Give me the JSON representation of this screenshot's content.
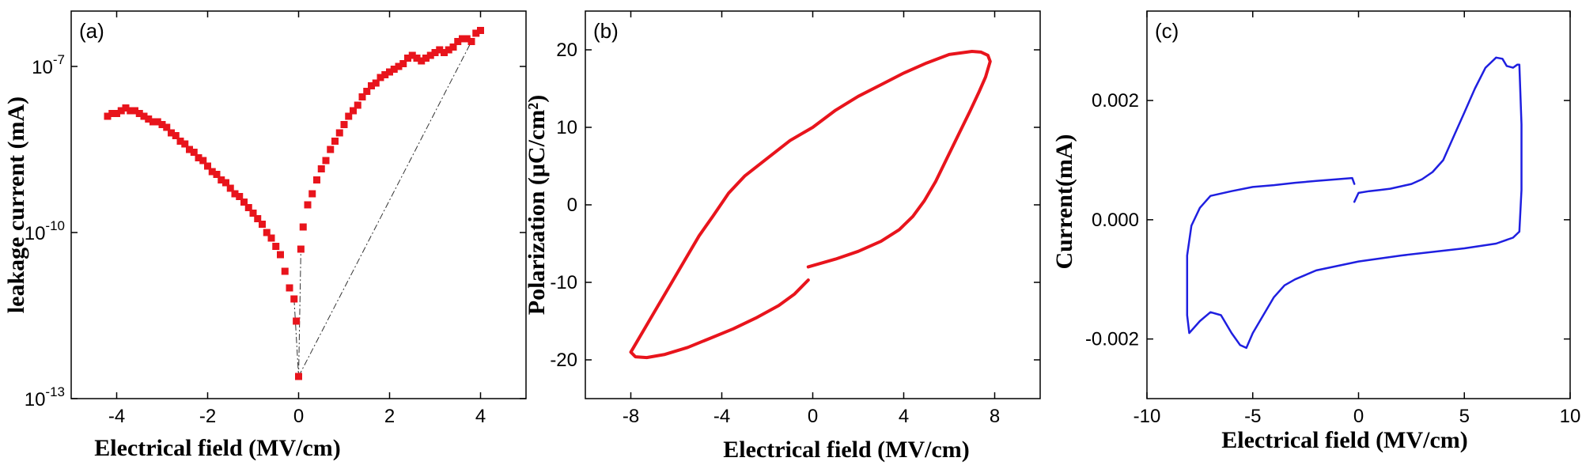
{
  "chart_data": [
    {
      "type": "scatter",
      "panel_label": "(a)",
      "xlabel": "Electrical field (MV/cm)",
      "ylabel": "leakage current (mA)",
      "xlim": [
        -5,
        5
      ],
      "ylim_log10": [
        -13,
        -6
      ],
      "yscale": "log",
      "xticks": [
        -4,
        -2,
        0,
        2,
        4
      ],
      "xtick_labels": [
        "-4",
        "-2",
        "0",
        "2",
        "4"
      ],
      "yticks_log10": [
        -13,
        -10,
        -7
      ],
      "ytick_labels": [
        {
          "base": "10",
          "exp": "-13"
        },
        {
          "base": "10",
          "exp": "-10"
        },
        {
          "base": "10",
          "exp": "-7"
        }
      ],
      "series": [
        {
          "color": "#e8141c",
          "marker": "square",
          "points_log10": [
            [
              -4.2,
              -7.9
            ],
            [
              -4.1,
              -7.85
            ],
            [
              -4.0,
              -7.85
            ],
            [
              -3.9,
              -7.8
            ],
            [
              -3.8,
              -7.75
            ],
            [
              -3.7,
              -7.8
            ],
            [
              -3.6,
              -7.8
            ],
            [
              -3.5,
              -7.85
            ],
            [
              -3.4,
              -7.9
            ],
            [
              -3.3,
              -7.95
            ],
            [
              -3.2,
              -8.0
            ],
            [
              -3.1,
              -8.0
            ],
            [
              -3.0,
              -8.05
            ],
            [
              -2.9,
              -8.1
            ],
            [
              -2.8,
              -8.2
            ],
            [
              -2.7,
              -8.25
            ],
            [
              -2.6,
              -8.35
            ],
            [
              -2.5,
              -8.4
            ],
            [
              -2.4,
              -8.5
            ],
            [
              -2.3,
              -8.55
            ],
            [
              -2.2,
              -8.65
            ],
            [
              -2.1,
              -8.7
            ],
            [
              -2.0,
              -8.8
            ],
            [
              -1.9,
              -8.9
            ],
            [
              -1.8,
              -8.95
            ],
            [
              -1.7,
              -9.05
            ],
            [
              -1.6,
              -9.1
            ],
            [
              -1.5,
              -9.2
            ],
            [
              -1.4,
              -9.3
            ],
            [
              -1.3,
              -9.35
            ],
            [
              -1.2,
              -9.45
            ],
            [
              -1.1,
              -9.55
            ],
            [
              -1.0,
              -9.65
            ],
            [
              -0.9,
              -9.75
            ],
            [
              -0.8,
              -9.85
            ],
            [
              -0.7,
              -10.0
            ],
            [
              -0.6,
              -10.1
            ],
            [
              -0.5,
              -10.25
            ],
            [
              -0.4,
              -10.4
            ],
            [
              -0.3,
              -10.7
            ],
            [
              -0.2,
              -11.0
            ],
            [
              -0.1,
              -11.2
            ],
            [
              -0.05,
              -11.6
            ],
            [
              0.0,
              -12.6
            ],
            [
              0.05,
              -10.3
            ],
            [
              0.1,
              -9.9
            ],
            [
              0.2,
              -9.5
            ],
            [
              0.3,
              -9.3
            ],
            [
              0.4,
              -9.05
            ],
            [
              0.5,
              -8.85
            ],
            [
              0.6,
              -8.7
            ],
            [
              0.7,
              -8.5
            ],
            [
              0.8,
              -8.35
            ],
            [
              0.9,
              -8.2
            ],
            [
              1.0,
              -8.05
            ],
            [
              1.1,
              -7.9
            ],
            [
              1.2,
              -7.8
            ],
            [
              1.3,
              -7.7
            ],
            [
              1.4,
              -7.55
            ],
            [
              1.5,
              -7.45
            ],
            [
              1.6,
              -7.35
            ],
            [
              1.7,
              -7.3
            ],
            [
              1.8,
              -7.2
            ],
            [
              1.9,
              -7.15
            ],
            [
              2.0,
              -7.1
            ],
            [
              2.1,
              -7.05
            ],
            [
              2.2,
              -7.0
            ],
            [
              2.3,
              -6.95
            ],
            [
              2.4,
              -6.85
            ],
            [
              2.5,
              -6.8
            ],
            [
              2.6,
              -6.85
            ],
            [
              2.7,
              -6.9
            ],
            [
              2.8,
              -6.85
            ],
            [
              2.9,
              -6.8
            ],
            [
              3.0,
              -6.75
            ],
            [
              3.1,
              -6.7
            ],
            [
              3.2,
              -6.75
            ],
            [
              3.3,
              -6.7
            ],
            [
              3.4,
              -6.65
            ],
            [
              3.5,
              -6.55
            ],
            [
              3.6,
              -6.5
            ],
            [
              3.7,
              -6.5
            ],
            [
              3.8,
              -6.55
            ],
            [
              3.9,
              -6.4
            ],
            [
              4.0,
              -6.35
            ]
          ]
        }
      ],
      "guide_lines_log10": [
        [
          [
            0.0,
            -12.6
          ],
          [
            3.8,
            -6.55
          ]
        ],
        [
          [
            -0.1,
            -11.2
          ],
          [
            0.0,
            -12.6
          ],
          [
            0.05,
            -10.3
          ]
        ]
      ]
    },
    {
      "type": "line",
      "panel_label": "(b)",
      "xlabel": "Electrical field (MV/cm)",
      "ylabel": "Polarization (μC/cm²)",
      "xlim": [
        -10,
        10
      ],
      "ylim": [
        -25,
        25
      ],
      "xticks": [
        -8,
        -4,
        0,
        4,
        8
      ],
      "xtick_labels": [
        "-8",
        "-4",
        "0",
        "4",
        "8"
      ],
      "yticks": [
        -20,
        -10,
        0,
        10,
        20
      ],
      "ytick_labels": [
        "-20",
        "-10",
        "0",
        "10",
        "20"
      ],
      "series": [
        {
          "color": "#e8141c",
          "points": [
            [
              -0.2,
              -8.0
            ],
            [
              1.0,
              -7.0
            ],
            [
              2.0,
              -6.0
            ],
            [
              3.0,
              -4.7
            ],
            [
              3.8,
              -3.2
            ],
            [
              4.4,
              -1.5
            ],
            [
              4.9,
              0.5
            ],
            [
              5.4,
              3.0
            ],
            [
              5.9,
              6.0
            ],
            [
              6.4,
              9.0
            ],
            [
              6.9,
              12.0
            ],
            [
              7.3,
              14.5
            ],
            [
              7.6,
              16.5
            ],
            [
              7.8,
              18.5
            ],
            [
              7.7,
              19.3
            ],
            [
              7.4,
              19.7
            ],
            [
              7.0,
              19.8
            ],
            [
              6.0,
              19.4
            ],
            [
              5.0,
              18.3
            ],
            [
              4.0,
              17.0
            ],
            [
              3.0,
              15.5
            ],
            [
              2.0,
              14.0
            ],
            [
              1.0,
              12.2
            ],
            [
              0.0,
              10.0
            ],
            [
              -1.0,
              8.3
            ],
            [
              -2.0,
              6.0
            ],
            [
              -3.0,
              3.7
            ],
            [
              -3.7,
              1.5
            ],
            [
              -4.4,
              -1.5
            ],
            [
              -5.0,
              -4.0
            ],
            [
              -5.6,
              -7.0
            ],
            [
              -6.2,
              -10.0
            ],
            [
              -6.8,
              -13.0
            ],
            [
              -7.4,
              -16.0
            ],
            [
              -7.9,
              -18.5
            ],
            [
              -8.0,
              -19.0
            ],
            [
              -7.8,
              -19.6
            ],
            [
              -7.3,
              -19.7
            ],
            [
              -6.5,
              -19.3
            ],
            [
              -5.5,
              -18.4
            ],
            [
              -4.5,
              -17.2
            ],
            [
              -3.5,
              -16.0
            ],
            [
              -2.5,
              -14.6
            ],
            [
              -1.5,
              -13.0
            ],
            [
              -0.8,
              -11.5
            ],
            [
              -0.2,
              -9.7
            ]
          ]
        }
      ]
    },
    {
      "type": "line",
      "panel_label": "(c)",
      "xlabel": "Electrical field (MV/cm)",
      "ylabel": "Current(mA)",
      "xlim": [
        -10,
        10
      ],
      "ylim": [
        -0.003,
        0.0035
      ],
      "xticks": [
        -10,
        -5,
        0,
        5,
        10
      ],
      "xtick_labels": [
        "-10",
        "-5",
        "0",
        "5",
        "10"
      ],
      "yticks": [
        -0.002,
        0.0,
        0.002
      ],
      "ytick_labels": [
        "-0.002",
        "0.000",
        "0.002"
      ],
      "series": [
        {
          "color": "#1f1fe0",
          "points": [
            [
              -0.2,
              0.0003
            ],
            [
              0.0,
              0.00045
            ],
            [
              0.5,
              0.00048
            ],
            [
              1.0,
              0.0005
            ],
            [
              1.5,
              0.00052
            ],
            [
              2.0,
              0.00056
            ],
            [
              2.5,
              0.0006
            ],
            [
              3.0,
              0.00068
            ],
            [
              3.5,
              0.0008
            ],
            [
              4.0,
              0.001
            ],
            [
              4.5,
              0.0014
            ],
            [
              5.0,
              0.0018
            ],
            [
              5.5,
              0.0022
            ],
            [
              6.0,
              0.00255
            ],
            [
              6.5,
              0.00272
            ],
            [
              6.8,
              0.0027
            ],
            [
              7.0,
              0.00258
            ],
            [
              7.3,
              0.00255
            ],
            [
              7.5,
              0.0026
            ],
            [
              7.6,
              0.0026
            ],
            [
              7.7,
              0.0016
            ],
            [
              7.7,
              0.0005
            ],
            [
              7.6,
              -0.0002
            ],
            [
              7.3,
              -0.0003
            ],
            [
              6.5,
              -0.0004
            ],
            [
              5.0,
              -0.00048
            ],
            [
              4.0,
              -0.00052
            ],
            [
              2.0,
              -0.0006
            ],
            [
              0.0,
              -0.0007
            ],
            [
              -2.0,
              -0.00085
            ],
            [
              -3.0,
              -0.001
            ],
            [
              -3.5,
              -0.0011
            ],
            [
              -4.0,
              -0.0013
            ],
            [
              -4.5,
              -0.0016
            ],
            [
              -5.0,
              -0.0019
            ],
            [
              -5.3,
              -0.00215
            ],
            [
              -5.6,
              -0.0021
            ],
            [
              -6.0,
              -0.0019
            ],
            [
              -6.5,
              -0.0016
            ],
            [
              -7.0,
              -0.00155
            ],
            [
              -7.5,
              -0.0017
            ],
            [
              -8.0,
              -0.0019
            ],
            [
              -8.1,
              -0.0016
            ],
            [
              -8.1,
              -0.0006
            ],
            [
              -7.9,
              -0.0001
            ],
            [
              -7.5,
              0.0002
            ],
            [
              -7.0,
              0.0004
            ],
            [
              -6.0,
              0.00048
            ],
            [
              -5.0,
              0.00055
            ],
            [
              -4.0,
              0.00058
            ],
            [
              -3.0,
              0.00062
            ],
            [
              -2.0,
              0.00065
            ],
            [
              -1.0,
              0.00068
            ],
            [
              -0.3,
              0.0007
            ],
            [
              -0.2,
              0.0006
            ]
          ]
        }
      ]
    }
  ]
}
